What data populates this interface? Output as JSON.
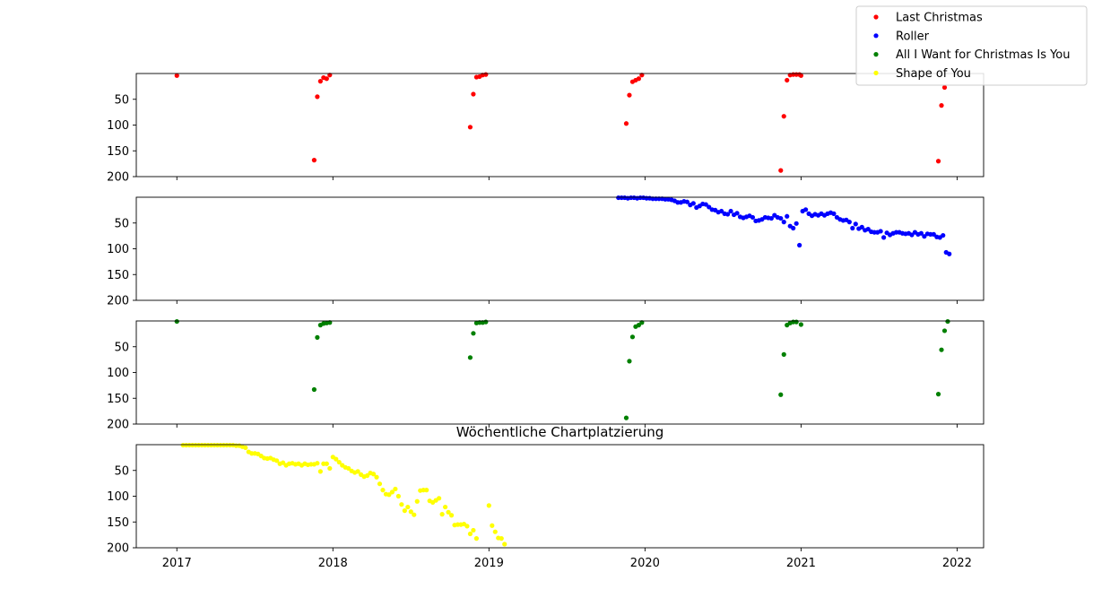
{
  "chart_data": {
    "type": "scatter",
    "title": "Wöchentliche Chartplatzierung",
    "xlabel": "",
    "ylabel": "",
    "x_ticks": [
      "2017",
      "2018",
      "2019",
      "2020",
      "2021",
      "2022"
    ],
    "y_ticks": [
      "50",
      "100",
      "150",
      "200"
    ],
    "ylim": [
      200,
      0
    ],
    "legend": {
      "placement": "top-right",
      "entries": [
        "Last Christmas",
        "Roller",
        "All I Want for Christmas Is You",
        "Shape of You"
      ]
    },
    "series": [
      {
        "name": "Last Christmas",
        "color": "#ff0000",
        "points": [
          [
            2017.0,
            4
          ],
          [
            2017.88,
            168
          ],
          [
            2017.9,
            45
          ],
          [
            2017.92,
            15
          ],
          [
            2017.94,
            8
          ],
          [
            2017.96,
            10
          ],
          [
            2017.98,
            3
          ],
          [
            2018.88,
            104
          ],
          [
            2018.9,
            40
          ],
          [
            2018.92,
            7
          ],
          [
            2018.94,
            6
          ],
          [
            2018.96,
            3
          ],
          [
            2018.98,
            2
          ],
          [
            2019.88,
            97
          ],
          [
            2019.9,
            42
          ],
          [
            2019.92,
            16
          ],
          [
            2019.94,
            13
          ],
          [
            2019.96,
            10
          ],
          [
            2019.98,
            3
          ],
          [
            2020.87,
            188
          ],
          [
            2020.89,
            83
          ],
          [
            2020.91,
            13
          ],
          [
            2020.93,
            3
          ],
          [
            2020.95,
            2
          ],
          [
            2020.97,
            2
          ],
          [
            2020.99,
            2
          ],
          [
            2021.0,
            4
          ],
          [
            2021.88,
            170
          ],
          [
            2021.9,
            62
          ],
          [
            2021.92,
            27
          ]
        ]
      },
      {
        "name": "Roller",
        "color": "#0000ff",
        "points": [
          [
            2019.83,
            1
          ],
          [
            2019.85,
            1
          ],
          [
            2019.87,
            1
          ],
          [
            2019.89,
            2
          ],
          [
            2019.91,
            1
          ],
          [
            2019.93,
            1
          ],
          [
            2019.95,
            2
          ],
          [
            2019.97,
            1
          ],
          [
            2019.99,
            1
          ],
          [
            2020.01,
            2
          ],
          [
            2020.03,
            2
          ],
          [
            2020.05,
            3
          ],
          [
            2020.07,
            3
          ],
          [
            2020.09,
            3
          ],
          [
            2020.11,
            3
          ],
          [
            2020.13,
            4
          ],
          [
            2020.15,
            4
          ],
          [
            2020.17,
            5
          ],
          [
            2020.19,
            7
          ],
          [
            2020.21,
            10
          ],
          [
            2020.23,
            10
          ],
          [
            2020.25,
            8
          ],
          [
            2020.27,
            9
          ],
          [
            2020.29,
            15
          ],
          [
            2020.31,
            12
          ],
          [
            2020.33,
            20
          ],
          [
            2020.35,
            17
          ],
          [
            2020.37,
            13
          ],
          [
            2020.39,
            14
          ],
          [
            2020.41,
            19
          ],
          [
            2020.43,
            24
          ],
          [
            2020.45,
            25
          ],
          [
            2020.47,
            29
          ],
          [
            2020.49,
            27
          ],
          [
            2020.51,
            32
          ],
          [
            2020.53,
            33
          ],
          [
            2020.55,
            27
          ],
          [
            2020.57,
            34
          ],
          [
            2020.59,
            31
          ],
          [
            2020.61,
            38
          ],
          [
            2020.63,
            40
          ],
          [
            2020.65,
            38
          ],
          [
            2020.67,
            36
          ],
          [
            2020.69,
            39
          ],
          [
            2020.71,
            46
          ],
          [
            2020.73,
            45
          ],
          [
            2020.75,
            43
          ],
          [
            2020.77,
            39
          ],
          [
            2020.79,
            40
          ],
          [
            2020.81,
            41
          ],
          [
            2020.83,
            35
          ],
          [
            2020.85,
            39
          ],
          [
            2020.87,
            41
          ],
          [
            2020.89,
            48
          ],
          [
            2020.91,
            37
          ],
          [
            2020.93,
            56
          ],
          [
            2020.95,
            60
          ],
          [
            2020.97,
            51
          ],
          [
            2020.99,
            93
          ],
          [
            2021.01,
            27
          ],
          [
            2021.03,
            24
          ],
          [
            2021.05,
            32
          ],
          [
            2021.07,
            36
          ],
          [
            2021.09,
            33
          ],
          [
            2021.11,
            35
          ],
          [
            2021.13,
            32
          ],
          [
            2021.15,
            35
          ],
          [
            2021.17,
            32
          ],
          [
            2021.19,
            30
          ],
          [
            2021.21,
            32
          ],
          [
            2021.23,
            39
          ],
          [
            2021.25,
            43
          ],
          [
            2021.27,
            45
          ],
          [
            2021.29,
            44
          ],
          [
            2021.31,
            48
          ],
          [
            2021.33,
            60
          ],
          [
            2021.35,
            52
          ],
          [
            2021.37,
            61
          ],
          [
            2021.39,
            58
          ],
          [
            2021.41,
            64
          ],
          [
            2021.43,
            62
          ],
          [
            2021.45,
            67
          ],
          [
            2021.47,
            68
          ],
          [
            2021.49,
            68
          ],
          [
            2021.51,
            66
          ],
          [
            2021.53,
            78
          ],
          [
            2021.55,
            69
          ],
          [
            2021.57,
            73
          ],
          [
            2021.59,
            70
          ],
          [
            2021.61,
            68
          ],
          [
            2021.63,
            68
          ],
          [
            2021.65,
            70
          ],
          [
            2021.67,
            71
          ],
          [
            2021.69,
            70
          ],
          [
            2021.71,
            73
          ],
          [
            2021.73,
            68
          ],
          [
            2021.75,
            72
          ],
          [
            2021.77,
            70
          ],
          [
            2021.79,
            76
          ],
          [
            2021.81,
            71
          ],
          [
            2021.83,
            72
          ],
          [
            2021.85,
            72
          ],
          [
            2021.87,
            77
          ],
          [
            2021.89,
            78
          ],
          [
            2021.91,
            74
          ],
          [
            2021.93,
            107
          ],
          [
            2021.95,
            110
          ]
        ]
      },
      {
        "name": "All I Want for Christmas Is You",
        "color": "#008000",
        "points": [
          [
            2017.0,
            1
          ],
          [
            2017.88,
            133
          ],
          [
            2017.9,
            32
          ],
          [
            2017.92,
            8
          ],
          [
            2017.94,
            5
          ],
          [
            2017.96,
            4
          ],
          [
            2017.98,
            3
          ],
          [
            2018.88,
            71
          ],
          [
            2018.9,
            24
          ],
          [
            2018.92,
            4
          ],
          [
            2018.94,
            3
          ],
          [
            2018.96,
            3
          ],
          [
            2018.98,
            2
          ],
          [
            2019.88,
            188
          ],
          [
            2019.9,
            78
          ],
          [
            2019.92,
            31
          ],
          [
            2019.94,
            11
          ],
          [
            2019.96,
            8
          ],
          [
            2019.98,
            3
          ],
          [
            2020.87,
            143
          ],
          [
            2020.89,
            65
          ],
          [
            2020.91,
            8
          ],
          [
            2020.93,
            4
          ],
          [
            2020.95,
            2
          ],
          [
            2020.97,
            2
          ],
          [
            2021.0,
            7
          ],
          [
            2021.88,
            142
          ],
          [
            2021.9,
            56
          ],
          [
            2021.92,
            19
          ],
          [
            2021.94,
            1
          ]
        ]
      },
      {
        "name": "Shape of You",
        "color": "#ffff00",
        "points": [
          [
            2017.04,
            1
          ],
          [
            2017.06,
            1
          ],
          [
            2017.08,
            1
          ],
          [
            2017.1,
            1
          ],
          [
            2017.12,
            1
          ],
          [
            2017.14,
            1
          ],
          [
            2017.16,
            1
          ],
          [
            2017.18,
            1
          ],
          [
            2017.2,
            1
          ],
          [
            2017.22,
            1
          ],
          [
            2017.24,
            1
          ],
          [
            2017.26,
            1
          ],
          [
            2017.28,
            1
          ],
          [
            2017.3,
            1
          ],
          [
            2017.32,
            1
          ],
          [
            2017.34,
            1
          ],
          [
            2017.36,
            1
          ],
          [
            2017.38,
            2
          ],
          [
            2017.4,
            2
          ],
          [
            2017.42,
            4
          ],
          [
            2017.44,
            6
          ],
          [
            2017.46,
            14
          ],
          [
            2017.48,
            17
          ],
          [
            2017.5,
            17
          ],
          [
            2017.52,
            18
          ],
          [
            2017.54,
            22
          ],
          [
            2017.56,
            26
          ],
          [
            2017.58,
            27
          ],
          [
            2017.6,
            26
          ],
          [
            2017.62,
            29
          ],
          [
            2017.64,
            31
          ],
          [
            2017.66,
            37
          ],
          [
            2017.68,
            35
          ],
          [
            2017.7,
            40
          ],
          [
            2017.72,
            37
          ],
          [
            2017.74,
            36
          ],
          [
            2017.76,
            38
          ],
          [
            2017.78,
            37
          ],
          [
            2017.8,
            40
          ],
          [
            2017.82,
            37
          ],
          [
            2017.84,
            39
          ],
          [
            2017.86,
            38
          ],
          [
            2017.88,
            38
          ],
          [
            2017.9,
            36
          ],
          [
            2017.92,
            52
          ],
          [
            2017.94,
            37
          ],
          [
            2017.96,
            37
          ],
          [
            2017.98,
            46
          ],
          [
            2018.0,
            24
          ],
          [
            2018.02,
            28
          ],
          [
            2018.04,
            34
          ],
          [
            2018.06,
            40
          ],
          [
            2018.08,
            44
          ],
          [
            2018.1,
            46
          ],
          [
            2018.12,
            51
          ],
          [
            2018.14,
            54
          ],
          [
            2018.16,
            52
          ],
          [
            2018.18,
            58
          ],
          [
            2018.2,
            62
          ],
          [
            2018.22,
            60
          ],
          [
            2018.24,
            55
          ],
          [
            2018.26,
            57
          ],
          [
            2018.28,
            63
          ],
          [
            2018.3,
            76
          ],
          [
            2018.32,
            88
          ],
          [
            2018.34,
            96
          ],
          [
            2018.36,
            97
          ],
          [
            2018.38,
            92
          ],
          [
            2018.4,
            86
          ],
          [
            2018.42,
            100
          ],
          [
            2018.44,
            116
          ],
          [
            2018.46,
            128
          ],
          [
            2018.48,
            121
          ],
          [
            2018.5,
            130
          ],
          [
            2018.52,
            136
          ],
          [
            2018.54,
            110
          ],
          [
            2018.56,
            89
          ],
          [
            2018.58,
            88
          ],
          [
            2018.6,
            88
          ],
          [
            2018.62,
            109
          ],
          [
            2018.64,
            112
          ],
          [
            2018.66,
            108
          ],
          [
            2018.68,
            104
          ],
          [
            2018.7,
            135
          ],
          [
            2018.72,
            121
          ],
          [
            2018.74,
            131
          ],
          [
            2018.76,
            137
          ],
          [
            2018.78,
            156
          ],
          [
            2018.8,
            155
          ],
          [
            2018.82,
            155
          ],
          [
            2018.84,
            154
          ],
          [
            2018.86,
            158
          ],
          [
            2018.88,
            173
          ],
          [
            2018.9,
            166
          ],
          [
            2018.92,
            182
          ],
          [
            2019.0,
            118
          ],
          [
            2019.02,
            157
          ],
          [
            2019.04,
            169
          ],
          [
            2019.06,
            181
          ],
          [
            2019.08,
            182
          ],
          [
            2019.1,
            193
          ]
        ]
      }
    ]
  }
}
